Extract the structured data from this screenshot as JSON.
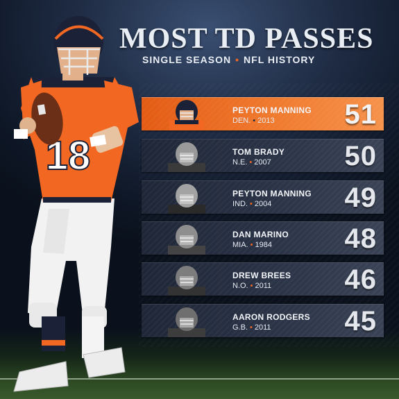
{
  "header": {
    "title": "MOST TD PASSES",
    "subtitle_left": "SINGLE SEASON",
    "subtitle_right": "NFL HISTORY"
  },
  "colors": {
    "accent_orange": "#f26722",
    "navy": "#1f2c44",
    "row_dark": "#2b3447"
  },
  "player_jersey_number": "18",
  "rows": [
    {
      "name": "PEYTON MANNING",
      "team": "DEN.",
      "year": "2013",
      "td": "51",
      "highlight": true
    },
    {
      "name": "TOM BRADY",
      "team": "N.E.",
      "year": "2007",
      "td": "50",
      "highlight": false
    },
    {
      "name": "PEYTON MANNING",
      "team": "IND.",
      "year": "2004",
      "td": "49",
      "highlight": false
    },
    {
      "name": "DAN MARINO",
      "team": "MIA.",
      "year": "1984",
      "td": "48",
      "highlight": false
    },
    {
      "name": "DREW BREES",
      "team": "N.O.",
      "year": "2011",
      "td": "46",
      "highlight": false
    },
    {
      "name": "AARON RODGERS",
      "team": "G.B.",
      "year": "2011",
      "td": "45",
      "highlight": false
    }
  ]
}
